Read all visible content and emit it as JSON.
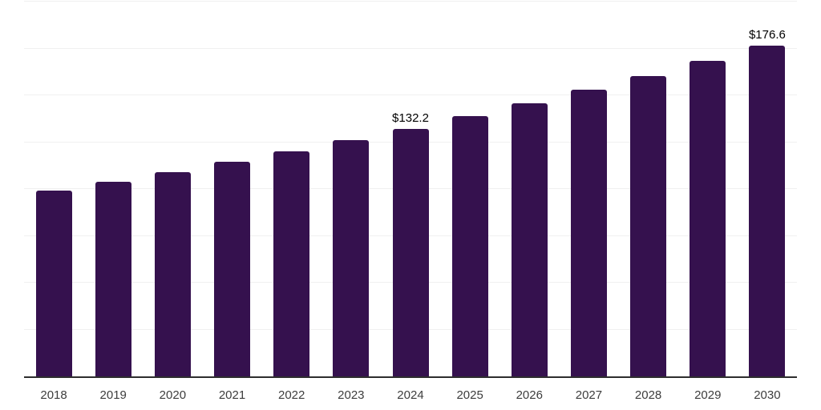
{
  "chart_data": {
    "type": "bar",
    "categories": [
      "2018",
      "2019",
      "2020",
      "2021",
      "2022",
      "2023",
      "2024",
      "2025",
      "2026",
      "2027",
      "2028",
      "2029",
      "2030"
    ],
    "values": [
      99.0,
      103.9,
      109.0,
      114.4,
      120.1,
      126.0,
      132.2,
      138.7,
      145.6,
      152.8,
      160.3,
      168.3,
      176.6
    ],
    "data_labels": [
      {
        "category": "2024",
        "index": 6,
        "text": "$132.2"
      },
      {
        "category": "2030",
        "index": 12,
        "text": "$176.6"
      }
    ],
    "title": "",
    "xlabel": "",
    "ylabel": "",
    "ylim": [
      0,
      200
    ],
    "gridline_step": 25,
    "grid": true,
    "legend": false,
    "colors": {
      "bar": "#35114e",
      "gridline": "#f0f0f0",
      "axis_line": "#2e2e2e",
      "data_label": "#000000",
      "tick_label": "#3d3d3d",
      "background": "#ffffff"
    }
  }
}
